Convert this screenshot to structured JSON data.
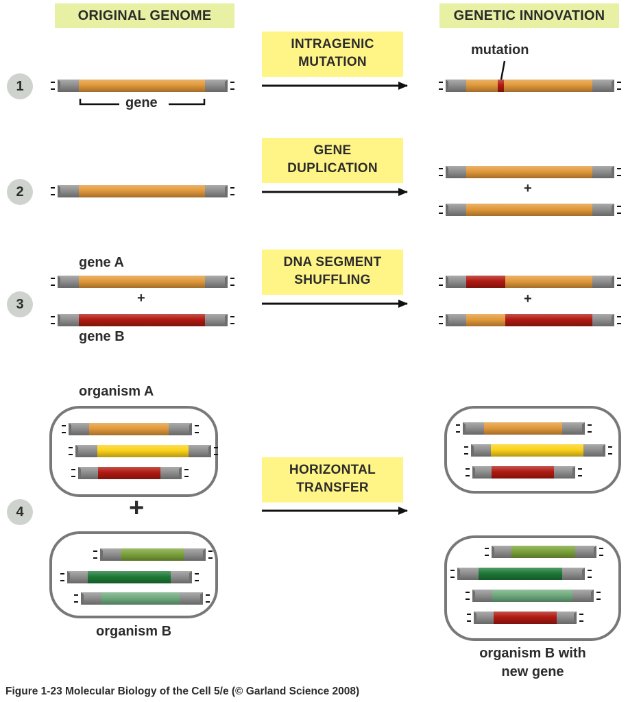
{
  "headers": {
    "original": "ORIGINAL GENOME",
    "innovation": "GENETIC INNOVATION"
  },
  "rows": [
    {
      "number": "1",
      "process_line1": "INTRAGENIC",
      "process_line2": "MUTATION"
    },
    {
      "number": "2",
      "process_line1": "GENE",
      "process_line2": "DUPLICATION"
    },
    {
      "number": "3",
      "process_line1": "DNA SEGMENT",
      "process_line2": "SHUFFLING"
    },
    {
      "number": "4",
      "process_line1": "HORIZONTAL",
      "process_line2": "TRANSFER"
    }
  ],
  "labels": {
    "gene": "gene",
    "mutation": "mutation",
    "gene_a": "gene A",
    "gene_b": "gene B",
    "plus": "+",
    "organism_a": "organism A",
    "organism_b": "organism B",
    "organism_b_new_line1": "organism B with",
    "organism_b_new_line2": "new gene"
  },
  "colors": {
    "flank_gray": "#8e8f8e",
    "orange_gene": "#e2993a",
    "red_gene": "#b01a12",
    "yellow_gene": "#fbd21a",
    "light_green_gene": "#7ba33a",
    "dark_green_gene": "#1e7a37",
    "pale_green_gene": "#6fab7e",
    "header_bg": "#e8f0a4",
    "process_bg": "#fff587",
    "number_circle": "#cfd3cd"
  },
  "caption": "Figure 1-23  Molecular Biology of the Cell 5/e (© Garland Science 2008)"
}
